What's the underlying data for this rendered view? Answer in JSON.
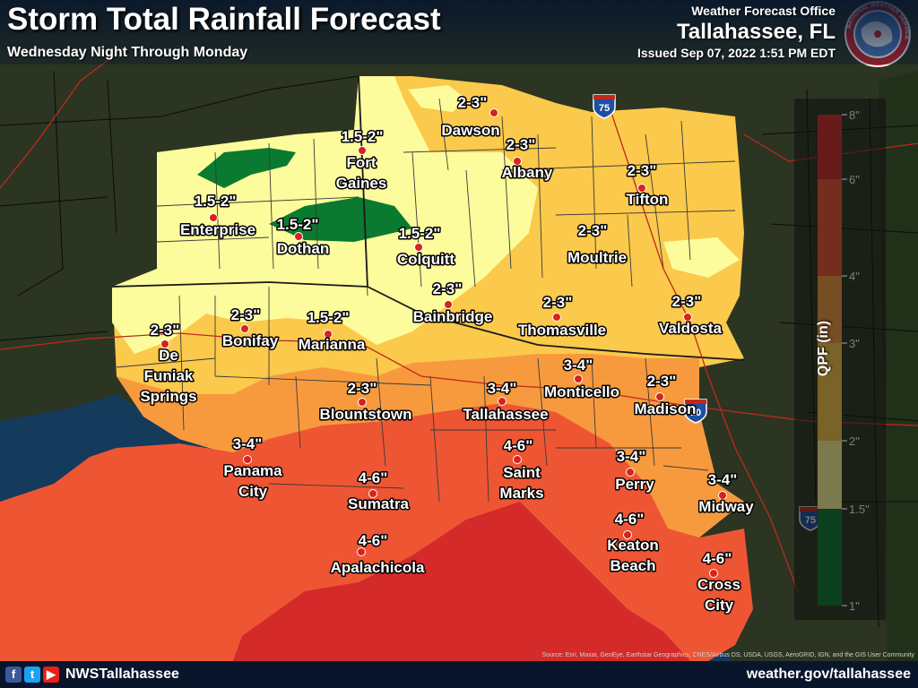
{
  "header": {
    "title": "Storm Total Rainfall Forecast",
    "subtitle": "Wednesday Night Through Monday",
    "office": "Weather Forecast Office",
    "city": "Tallahassee, FL",
    "issued": "Issued Sep 07, 2022 1:51 PM EDT"
  },
  "logo_text": "NATIONAL WEATHER SERVICE",
  "interstates": [
    "75",
    "10",
    "75"
  ],
  "footer": {
    "handle": "NWSTallahassee",
    "website": "weather.gov/tallahassee",
    "source": "Source: Esri, Maxar, GeoEye, Earthstar Geographics, CNES/Airbus DS, USDA, USGS, AeroGRID, IGN, and the GIS User Community",
    "social_icons": [
      "facebook-icon",
      "twitter-icon",
      "youtube-icon"
    ]
  },
  "colors": {
    "lt_1_5": "#0a7a30",
    "1_5_to_2": "#fcfc9c",
    "2_to_3": "#fbc94b",
    "3_to_4": "#f79a3e",
    "4_to_6": "#ee5533",
    "6_to_8": "#d42a2a"
  },
  "chart_data": {
    "type": "choropleth_map",
    "legend": {
      "title": "QPF (in)",
      "ticks": [
        "1\"",
        "1.5\"",
        "2\"",
        "3\"",
        "4\"",
        "6\"",
        "8\""
      ],
      "bins": [
        {
          "min": 1,
          "max": 1.5,
          "color": "#0a7a30"
        },
        {
          "min": 1.5,
          "max": 2,
          "color": "#fcfc9c"
        },
        {
          "min": 2,
          "max": 3,
          "color": "#fbc94b"
        },
        {
          "min": 3,
          "max": 4,
          "color": "#f79a3e"
        },
        {
          "min": 4,
          "max": 6,
          "color": "#ee5533"
        },
        {
          "min": 6,
          "max": 8,
          "color": "#d42a2a"
        }
      ]
    },
    "locations": [
      {
        "name": "Dawson",
        "amount": "2-3\""
      },
      {
        "name": "Fort Gaines",
        "amount": "1.5-2\""
      },
      {
        "name": "Albany",
        "amount": "2-3\""
      },
      {
        "name": "Tifton",
        "amount": "2-3\""
      },
      {
        "name": "Enterprise",
        "amount": "1.5-2\""
      },
      {
        "name": "Dothan",
        "amount": "1.5-2\""
      },
      {
        "name": "Colquitt",
        "amount": "1.5-2\""
      },
      {
        "name": "Moultrie",
        "amount": "2-3\""
      },
      {
        "name": "Bainbridge",
        "amount": "2-3\""
      },
      {
        "name": "Thomasville",
        "amount": "2-3\""
      },
      {
        "name": "Valdosta",
        "amount": "2-3\""
      },
      {
        "name": "De Funiak Springs",
        "amount": "2-3\""
      },
      {
        "name": "Bonifay",
        "amount": "2-3\""
      },
      {
        "name": "Marianna",
        "amount": "1.5-2\""
      },
      {
        "name": "Monticello",
        "amount": "3-4\""
      },
      {
        "name": "Tallahassee",
        "amount": "3-4\""
      },
      {
        "name": "Madison",
        "amount": "2-3\""
      },
      {
        "name": "Blountstown",
        "amount": "2-3\""
      },
      {
        "name": "Panama City",
        "amount": "3-4\""
      },
      {
        "name": "Saint Marks",
        "amount": "4-6\""
      },
      {
        "name": "Perry",
        "amount": "3-4\""
      },
      {
        "name": "Sumatra",
        "amount": "4-6\""
      },
      {
        "name": "Midway",
        "amount": "3-4\""
      },
      {
        "name": "Apalachicola",
        "amount": "4-6\""
      },
      {
        "name": "Keaton Beach",
        "amount": "4-6\""
      },
      {
        "name": "Cross City",
        "amount": "4-6\""
      }
    ]
  }
}
